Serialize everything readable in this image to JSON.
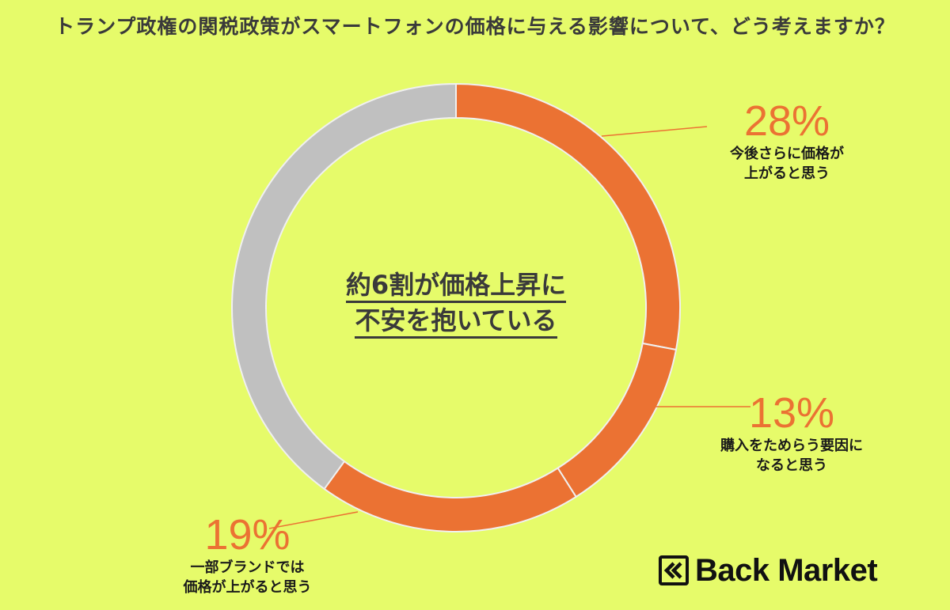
{
  "title": "トランプ政権の関税政策がスマートフォンの価格に与える影響について、どう考えますか？",
  "center_text": {
    "line1": "約6割が価格上昇に",
    "line2": "不安を抱いている"
  },
  "chart_data": {
    "type": "pie",
    "slices": [
      {
        "label": "今後さらに価格が上がると思う",
        "value": 28,
        "percent_label": "28%",
        "label_line1": "今後さらに価格が",
        "label_line2": "上がると思う",
        "color": "#eb7233"
      },
      {
        "label": "購入をためらう要因になると思う",
        "value": 13,
        "percent_label": "13%",
        "label_line1": "購入をためらう要因に",
        "label_line2": "なると思う",
        "color": "#eb7233"
      },
      {
        "label": "一部ブランドでは価格が上がると思う",
        "value": 19,
        "percent_label": "19%",
        "label_line1": "一部ブランドでは",
        "label_line2": "価格が上がると思う",
        "color": "#eb7233"
      },
      {
        "label": "",
        "value": 40,
        "color": "#c0c0c0"
      }
    ],
    "start": "top",
    "direction": "clockwise"
  },
  "logo": {
    "text": "Back Market",
    "mark_icon": "back-market-chevron-logo-icon"
  },
  "colors": {
    "background": "#e6fb6a",
    "accent": "#eb7233",
    "remainder": "#c0c0c0",
    "divider": "#f0f0f0"
  }
}
